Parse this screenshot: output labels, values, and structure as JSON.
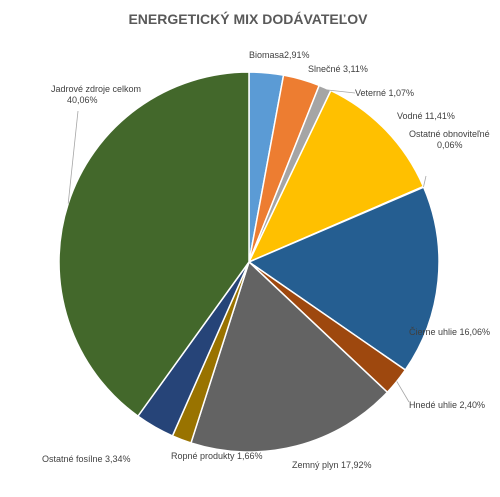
{
  "chart_data": {
    "type": "pie",
    "title": "ENERGETICKÝ  MIX DODÁVATEĽOV",
    "legend": "none",
    "start_angle_deg": 0,
    "direction": "clockwise",
    "slices": [
      {
        "label": "Biomasa",
        "value_text": "2,91%",
        "value": 2.91,
        "color": "#5B9BD5"
      },
      {
        "label": "Slnečné",
        "value_text": "3,11%",
        "value": 3.11,
        "color": "#ED7D31"
      },
      {
        "label": "Veterné",
        "value_text": "1,07%",
        "value": 1.07,
        "color": "#A5A5A5"
      },
      {
        "label": "Vodné",
        "value_text": "11,41%",
        "value": 11.41,
        "color": "#FFC000"
      },
      {
        "label": "Ostatné obnoviteľné",
        "value_text": "0,06%",
        "value": 0.06,
        "color": "#4472C4"
      },
      {
        "label": "Čierne uhlie",
        "value_text": "16,06%",
        "value": 16.06,
        "color": "#255E91"
      },
      {
        "label": "Hnedé uhlie",
        "value_text": "2,40%",
        "value": 2.4,
        "color": "#9E480E"
      },
      {
        "label": "Zemný plyn",
        "value_text": "17,92%",
        "value": 17.92,
        "color": "#636363"
      },
      {
        "label": "Ropné produkty",
        "value_text": "1,66%",
        "value": 1.66,
        "color": "#997300"
      },
      {
        "label": "Ostatné fosílne",
        "value_text": "3,34%",
        "value": 3.34,
        "color": "#264478"
      },
      {
        "label": "Jadrové zdroje celkom",
        "value_text": "40,06%",
        "value": 40.06,
        "color": "#43682B"
      }
    ]
  }
}
